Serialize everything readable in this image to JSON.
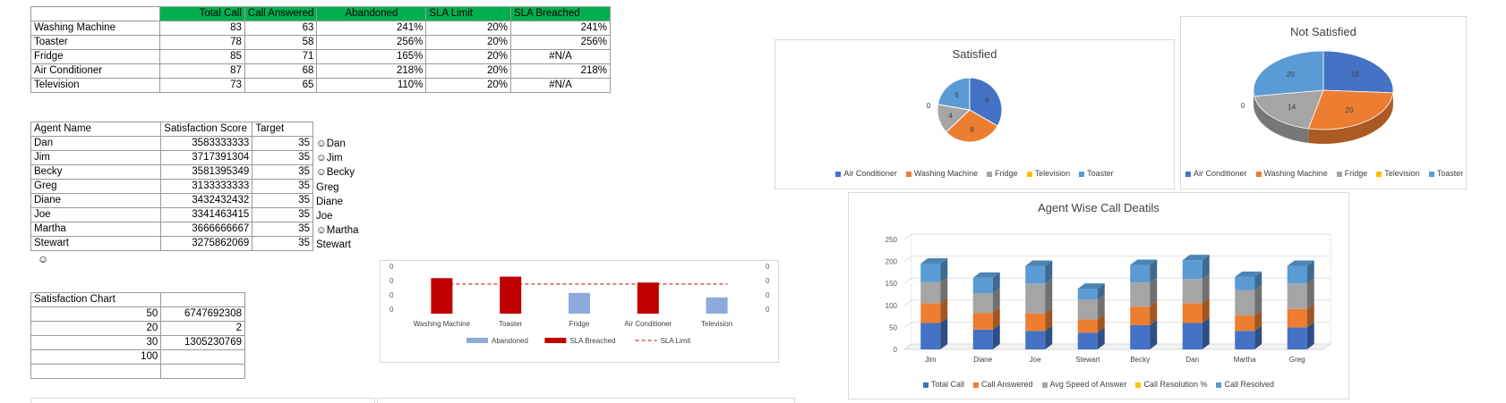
{
  "sla_table": {
    "headers": [
      "Total Call",
      "Call Answered",
      "Abandoned",
      "SLA Limit",
      "SLA Breached"
    ],
    "rows": [
      {
        "name": "Washing Machine",
        "total": "83",
        "answered": "63",
        "abandoned": "241%",
        "limit": "20%",
        "breached": "241%"
      },
      {
        "name": "Toaster",
        "total": "78",
        "answered": "58",
        "abandoned": "256%",
        "limit": "20%",
        "breached": "256%"
      },
      {
        "name": "Fridge",
        "total": "85",
        "answered": "71",
        "abandoned": "165%",
        "limit": "20%",
        "breached": "#N/A"
      },
      {
        "name": "Air Conditioner",
        "total": "87",
        "answered": "68",
        "abandoned": "218%",
        "limit": "20%",
        "breached": "218%"
      },
      {
        "name": "Television",
        "total": "73",
        "answered": "65",
        "abandoned": "110%",
        "limit": "20%",
        "breached": "#N/A"
      }
    ]
  },
  "agent_table": {
    "headers": [
      "Agent Name",
      "Satisfaction Score",
      "Target"
    ],
    "rows": [
      {
        "name": "Dan",
        "score": "3583333333",
        "target": "35",
        "label": "☺Dan"
      },
      {
        "name": "Jim",
        "score": "3717391304",
        "target": "35",
        "label": "☺Jim"
      },
      {
        "name": "Becky",
        "score": "3581395349",
        "target": "35",
        "label": "☺Becky"
      },
      {
        "name": "Greg",
        "score": "3133333333",
        "target": "35",
        "label": "Greg"
      },
      {
        "name": "Diane",
        "score": "3432432432",
        "target": "35",
        "label": "Diane"
      },
      {
        "name": "Joe",
        "score": "3341463415",
        "target": "35",
        "label": "Joe"
      },
      {
        "name": "Martha",
        "score": "3666666667",
        "target": "35",
        "label": "☺Martha"
      },
      {
        "name": "Stewart",
        "score": "3275862069",
        "target": "35",
        "label": "Stewart"
      }
    ],
    "smiley": "☺"
  },
  "satisfaction_table": {
    "title": "Satisfaction Chart",
    "rows": [
      {
        "a": "50",
        "b": "6747692308"
      },
      {
        "a": "20",
        "b": "2"
      },
      {
        "a": "30",
        "b": "1305230769"
      },
      {
        "a": "100",
        "b": ""
      },
      {
        "a": "",
        "b": ""
      }
    ]
  },
  "colors": {
    "blue": "#4472c4",
    "orange": "#ed7d31",
    "gray": "#a5a5a5",
    "yellow": "#ffc000",
    "lightblue": "#5b9bd5",
    "red": "#c00000",
    "paleblue": "#8eaadb",
    "header_green": "#00b050"
  },
  "chart_data": [
    {
      "type": "pie",
      "title": "Satisfied",
      "slices": [
        {
          "label": "Air Conditioner",
          "value": 9,
          "color": "#4472c4"
        },
        {
          "label": "Washing Machine",
          "value": 8,
          "color": "#ed7d31"
        },
        {
          "label": "Fridge",
          "value": 4,
          "color": "#a5a5a5"
        },
        {
          "label": "Television",
          "value": 0,
          "color": "#ffc000"
        },
        {
          "label": "Toaster",
          "value": 6,
          "color": "#5b9bd5"
        }
      ],
      "legend": [
        "Air Conditioner",
        "Washing Machine",
        "Fridge",
        "Television",
        "Toaster"
      ],
      "legend_position": "bottom"
    },
    {
      "type": "pie",
      "title": "Not Satisfied",
      "style": "3d",
      "slices": [
        {
          "label": "Air Conditioner",
          "value": 19,
          "color": "#4472c4"
        },
        {
          "label": "Washing Machine",
          "value": 20,
          "color": "#ed7d31"
        },
        {
          "label": "Fridge",
          "value": 14,
          "color": "#a5a5a5"
        },
        {
          "label": "Television",
          "value": 0,
          "color": "#ffc000"
        },
        {
          "label": "Toaster",
          "value": 20,
          "color": "#5b9bd5"
        }
      ],
      "legend": [
        "Air Conditioner",
        "Washing Machine",
        "Fridge",
        "Television",
        "Toaster"
      ],
      "legend_position": "bottom"
    },
    {
      "type": "bar",
      "title": "",
      "categories": [
        "Washing Machine",
        "Toaster",
        "Fridge",
        "Air Conditioner",
        "Television"
      ],
      "series": [
        {
          "name": "Abandoned",
          "values": [
            0,
            0,
            0.7,
            0,
            0.55
          ],
          "color": "#8eaadb"
        },
        {
          "name": "SLA Breached",
          "values": [
            1.2,
            1.25,
            0,
            1.05,
            0
          ],
          "color": "#c00000"
        },
        {
          "name": "SLA Limit",
          "values": [
            1,
            1,
            1,
            1,
            1
          ],
          "color": "#c00000",
          "style": "dashed-line"
        }
      ],
      "y_ticks_left": [
        "0",
        "0",
        "0",
        "0"
      ],
      "y_ticks_right": [
        "0",
        "0",
        "0",
        "0"
      ],
      "ylim": [
        0,
        1.6
      ],
      "legend_position": "bottom"
    },
    {
      "type": "bar",
      "stacked": true,
      "style": "3d",
      "title": "Agent Wise Call Deatils",
      "categories": [
        "Jim",
        "Diane",
        "Joe",
        "Stewart",
        "Becky",
        "Dan",
        "Martha",
        "Greg"
      ],
      "series": [
        {
          "name": "Total Call",
          "values": [
            60,
            45,
            42,
            38,
            55,
            60,
            42,
            50
          ],
          "color": "#4472c4"
        },
        {
          "name": "Call Answered",
          "values": [
            45,
            38,
            40,
            30,
            42,
            45,
            35,
            42
          ],
          "color": "#ed7d31"
        },
        {
          "name": "Avg Speed of Answer",
          "values": [
            48,
            45,
            68,
            45,
            55,
            55,
            58,
            58
          ],
          "color": "#a5a5a5"
        },
        {
          "name": "Call Resolution %",
          "values": [
            0,
            0,
            0,
            0,
            0,
            0,
            0,
            0
          ],
          "color": "#ffc000"
        },
        {
          "name": "Call Resolved",
          "values": [
            42,
            35,
            40,
            25,
            40,
            43,
            30,
            40
          ],
          "color": "#5b9bd5"
        }
      ],
      "y_ticks": [
        "0",
        "50",
        "100",
        "150",
        "200",
        "250"
      ],
      "ylim": [
        0,
        250
      ],
      "legend_position": "bottom"
    }
  ]
}
